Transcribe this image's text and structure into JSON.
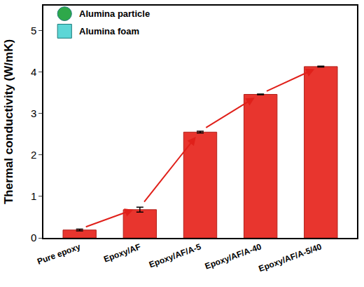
{
  "chart_data": {
    "type": "bar",
    "y_label": "Thermal conductivity (W/mK)",
    "categories": [
      "Pure epoxy",
      "Epoxy/AF",
      "Epoxy/AF/A-5",
      "Epoxy/AF/A-40",
      "Epoxy/AF/A-5/40"
    ],
    "values": [
      0.19,
      0.68,
      2.55,
      3.46,
      4.13
    ],
    "errors": [
      0.02,
      0.06,
      0.02,
      0.01,
      0.01
    ],
    "color": "#e8352e",
    "ylim": [
      0,
      5.6
    ],
    "yticks": [
      0,
      1,
      2,
      3,
      4,
      5
    ],
    "grid": false,
    "annotations": [
      "Alumina particle",
      "Alumina foam"
    ]
  }
}
